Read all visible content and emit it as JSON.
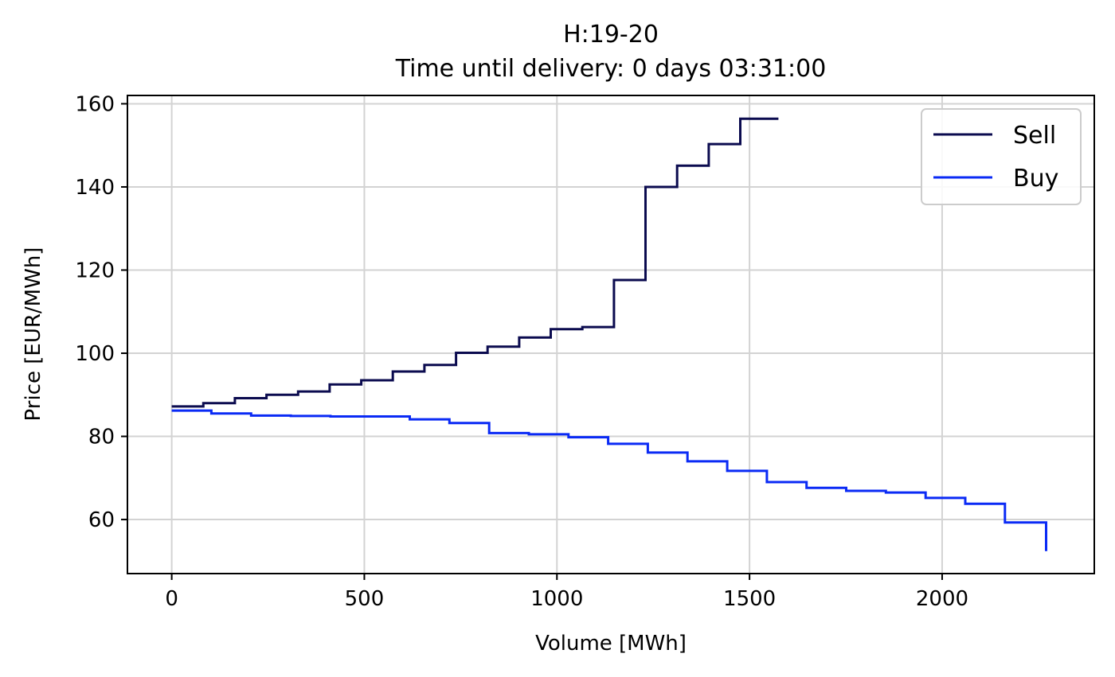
{
  "chart_data": {
    "type": "line",
    "step": "post",
    "title": "H:19-20",
    "subtitle": "Time until delivery: 0 days 03:31:00",
    "xlabel": "Volume [MWh]",
    "ylabel": "Price [EUR/MWh]",
    "xlim": [
      -115,
      2395
    ],
    "ylim": [
      47,
      162
    ],
    "xticks": [
      0,
      500,
      1000,
      1500,
      2000
    ],
    "yticks": [
      60,
      80,
      100,
      120,
      140,
      160
    ],
    "grid": true,
    "legend_position": "top-right",
    "series": [
      {
        "name": "Sell",
        "color": "#0b0b4f",
        "x": [
          0,
          82,
          164,
          246,
          328,
          410,
          492,
          574,
          656,
          738,
          820,
          902,
          984,
          1066,
          1148,
          1230,
          1312,
          1394,
          1476,
          1575
        ],
        "y": [
          87.2,
          88.0,
          89.2,
          90.0,
          90.8,
          92.5,
          93.5,
          95.6,
          97.2,
          100.1,
          101.6,
          103.8,
          105.8,
          106.3,
          117.6,
          140.0,
          145.1,
          150.3,
          156.4,
          156.4
        ]
      },
      {
        "name": "Buy",
        "color": "#0a2af5",
        "x": [
          0,
          103,
          206,
          309,
          412,
          515,
          618,
          721,
          824,
          927,
          1030,
          1133,
          1236,
          1339,
          1442,
          1545,
          1648,
          1751,
          1854,
          1957,
          2060,
          2163,
          2270
        ],
        "y": [
          86.2,
          85.5,
          85.0,
          84.9,
          84.8,
          84.8,
          84.1,
          83.2,
          80.8,
          80.5,
          79.8,
          78.2,
          76.1,
          74.0,
          71.7,
          69.0,
          67.6,
          66.9,
          66.5,
          65.2,
          63.8,
          59.3,
          52.4
        ]
      }
    ]
  }
}
